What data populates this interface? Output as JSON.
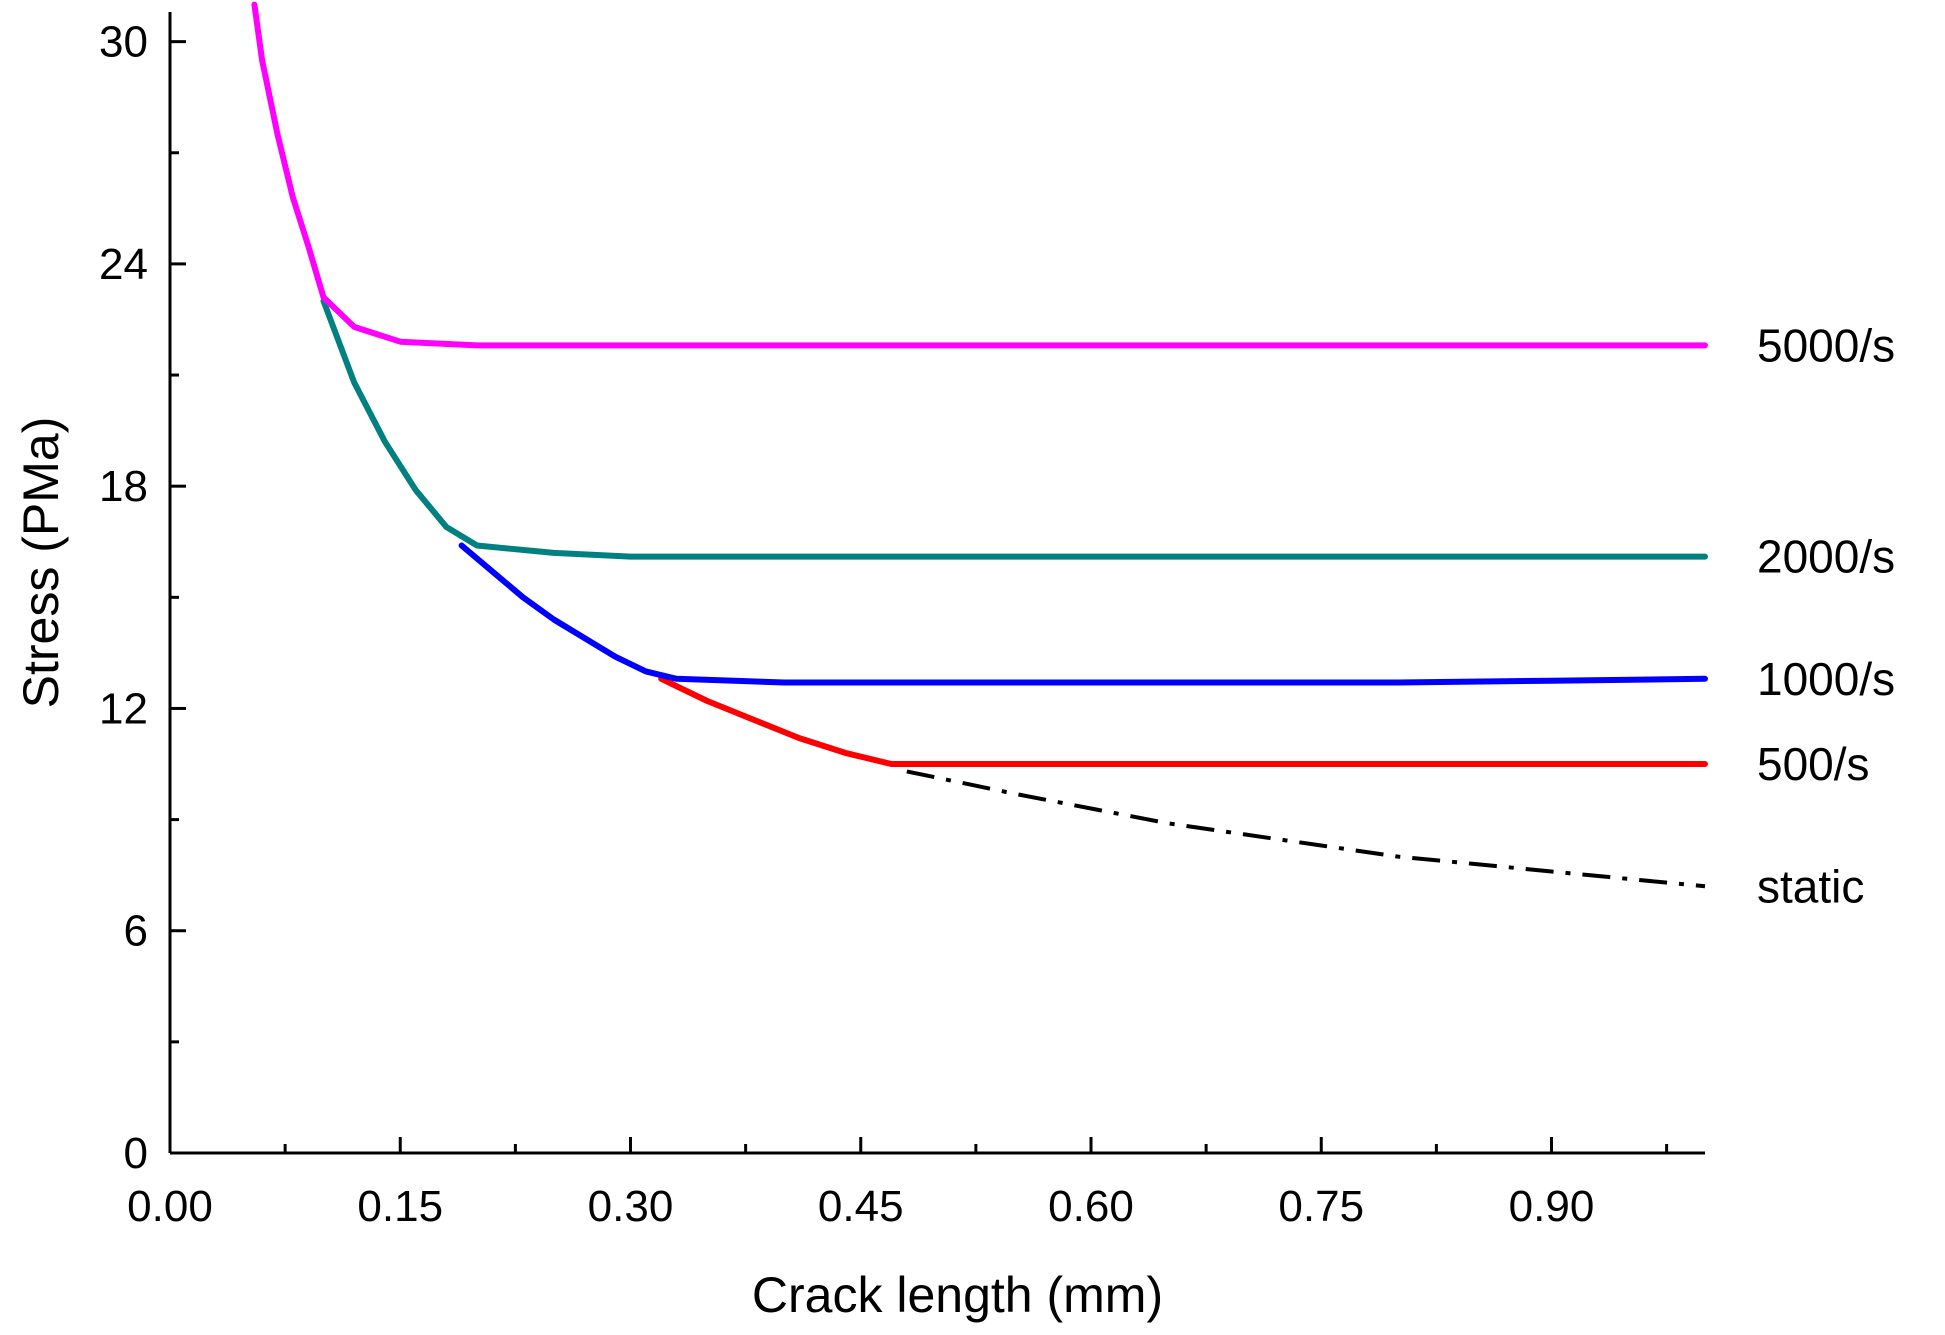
{
  "chart_data": {
    "type": "line",
    "title": "",
    "xlabel": "Crack length (mm)",
    "ylabel": "Stress (PMa)",
    "xlim": [
      0.0,
      1.0
    ],
    "ylim": [
      0,
      30.8
    ],
    "grid": false,
    "legend": "inline labels at right end of each curve",
    "x_ticks": [
      0.0,
      0.15,
      0.3,
      0.45,
      0.6,
      0.75,
      0.9
    ],
    "x_tick_labels": [
      "0.00",
      "0.15",
      "0.30",
      "0.45",
      "0.60",
      "0.75",
      "0.90"
    ],
    "y_ticks": [
      0,
      6,
      12,
      18,
      24,
      30
    ],
    "y_tick_labels": [
      "0",
      "6",
      "12",
      "18",
      "24",
      "30"
    ],
    "series": [
      {
        "name": "static",
        "color": "#000000",
        "style": "dash-dot",
        "x": [
          0.48,
          0.55,
          0.6,
          0.65,
          0.7,
          0.75,
          0.8,
          0.85,
          0.9,
          0.95,
          1.0
        ],
        "y": [
          10.3,
          9.7,
          9.3,
          8.9,
          8.6,
          8.3,
          8.0,
          7.8,
          7.6,
          7.4,
          7.2
        ]
      },
      {
        "name": "500/s",
        "color": "#ff0000",
        "style": "solid",
        "x": [
          0.32,
          0.35,
          0.38,
          0.41,
          0.44,
          0.47,
          0.5,
          0.6,
          0.7,
          0.8,
          0.9,
          1.0
        ],
        "y": [
          12.8,
          12.2,
          11.7,
          11.2,
          10.8,
          10.5,
          10.5,
          10.5,
          10.5,
          10.5,
          10.5,
          10.5
        ]
      },
      {
        "name": "1000/s",
        "color": "#0000ff",
        "style": "solid",
        "x": [
          0.19,
          0.21,
          0.23,
          0.25,
          0.27,
          0.29,
          0.31,
          0.33,
          0.4,
          0.5,
          0.6,
          0.7,
          0.8,
          0.9,
          1.0
        ],
        "y": [
          16.4,
          15.7,
          15.0,
          14.4,
          13.9,
          13.4,
          13.0,
          12.8,
          12.7,
          12.7,
          12.7,
          12.7,
          12.7,
          12.75,
          12.8
        ]
      },
      {
        "name": "2000/s",
        "color": "#008080",
        "style": "solid",
        "x": [
          0.1,
          0.12,
          0.14,
          0.16,
          0.18,
          0.2,
          0.25,
          0.3,
          0.4,
          0.5,
          0.6,
          0.7,
          0.8,
          0.9,
          1.0
        ],
        "y": [
          23.0,
          20.8,
          19.2,
          17.9,
          16.9,
          16.4,
          16.2,
          16.1,
          16.1,
          16.1,
          16.1,
          16.1,
          16.1,
          16.1,
          16.1
        ]
      },
      {
        "name": "5000/s",
        "color": "#ff00ff",
        "style": "solid",
        "x": [
          0.055,
          0.06,
          0.07,
          0.08,
          0.09,
          0.1,
          0.12,
          0.15,
          0.2,
          0.3,
          0.4,
          0.5,
          0.6,
          0.7,
          0.8,
          0.9,
          1.0
        ],
        "y": [
          31.0,
          29.5,
          27.5,
          25.8,
          24.5,
          23.1,
          22.3,
          21.9,
          21.8,
          21.8,
          21.8,
          21.8,
          21.8,
          21.8,
          21.8,
          21.8,
          21.8
        ]
      }
    ]
  }
}
